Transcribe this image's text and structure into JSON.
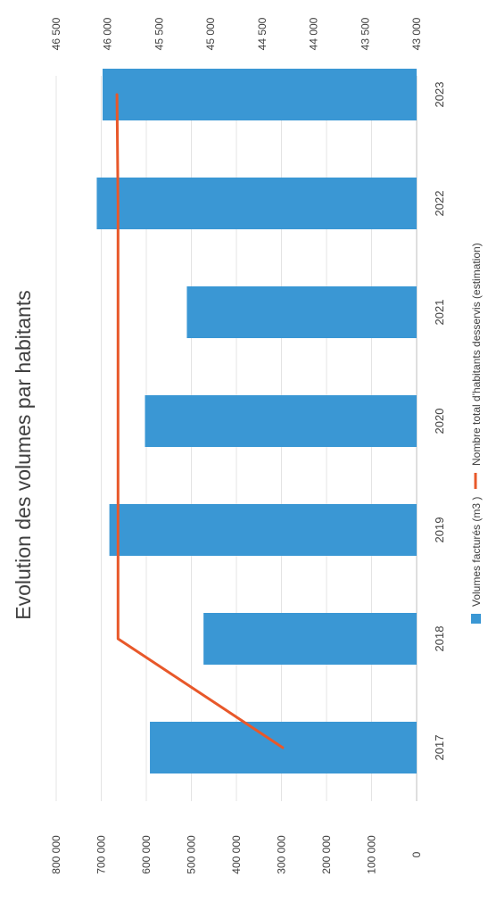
{
  "chart_data": {
    "type": "bar",
    "title": "Evolution des volumes par habitants",
    "categories": [
      "2017",
      "2018",
      "2019",
      "2020",
      "2021",
      "2022",
      "2023"
    ],
    "series": [
      {
        "name": "Volumes facturés (m3 )",
        "type": "bar",
        "axis": "left",
        "values": [
          592000,
          473000,
          682000,
          603000,
          510000,
          710000,
          697000
        ],
        "color": "#3a97d4"
      },
      {
        "name": "Nombre total d'habitants desservis (estimation)",
        "type": "line",
        "axis": "right",
        "values": [
          44300,
          45900,
          45900,
          45900,
          45900,
          45900,
          45910
        ],
        "color": "#e8582a"
      }
    ],
    "left_axis": {
      "ticks": [
        "0",
        "100 000",
        "200 000",
        "300 000",
        "400 000",
        "500 000",
        "600 000",
        "700 000",
        "800 000"
      ],
      "range": [
        0,
        800000
      ]
    },
    "right_axis": {
      "ticks": [
        "43 000",
        "43 500",
        "44 000",
        "44 500",
        "45 000",
        "45 500",
        "46 000",
        "46 500"
      ],
      "range": [
        43000,
        46500
      ]
    },
    "grid": true,
    "legend_position": "bottom",
    "orientation": "rotated-90-clockwise"
  }
}
